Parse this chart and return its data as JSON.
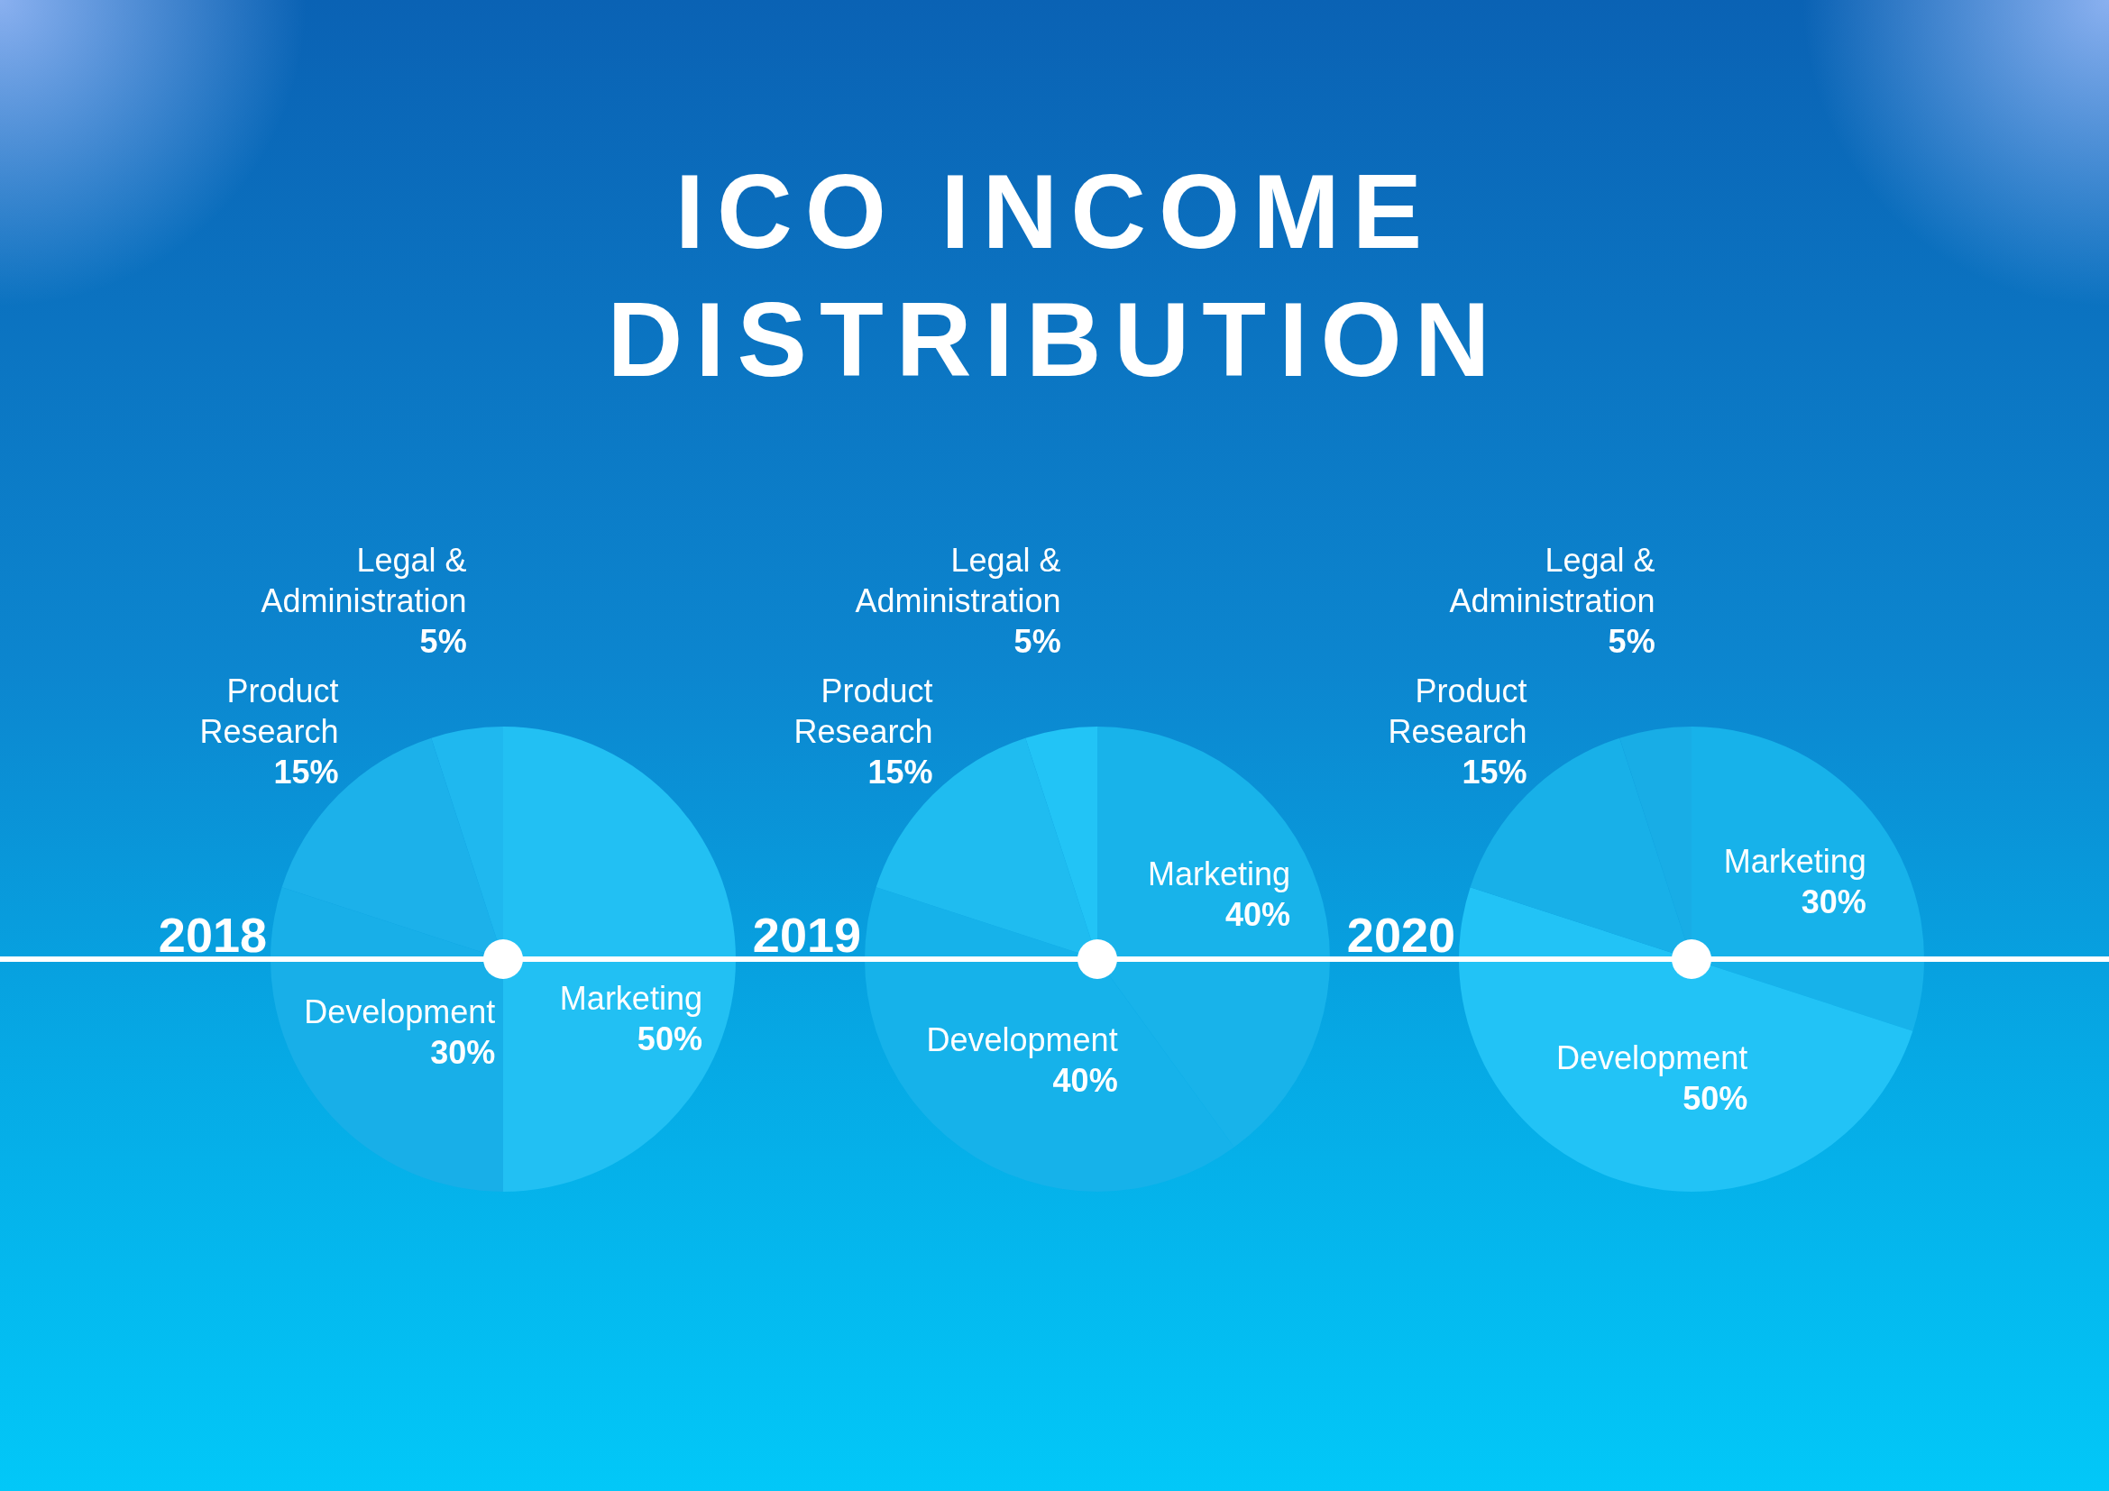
{
  "chart_data": [
    {
      "type": "other",
      "title": "ICO INCOME DISTRIBUTION"
    },
    {
      "type": "pie",
      "title": "2018",
      "categories": [
        "Marketing",
        "Development",
        "Product Research",
        "Legal & Administration"
      ],
      "values": [
        50,
        30,
        15,
        5
      ],
      "colors": [
        "#22c0f3",
        "#18afe8",
        "#1cb1ea",
        "#1fb8ef"
      ],
      "value_labels": [
        "50%",
        "30%",
        "15%",
        "5%"
      ]
    },
    {
      "type": "pie",
      "title": "2019",
      "categories": [
        "Marketing",
        "Development",
        "Product Research",
        "Legal & Administration"
      ],
      "values": [
        40,
        40,
        15,
        5
      ],
      "colors": [
        "#18b3ea",
        "#16b2ea",
        "#1fbcf0",
        "#22c4f6"
      ],
      "value_labels": [
        "40%",
        "40%",
        "15%",
        "5%"
      ]
    },
    {
      "type": "pie",
      "title": "2020",
      "categories": [
        "Marketing",
        "Development",
        "Product Research",
        "Legal & Administration"
      ],
      "values": [
        30,
        50,
        15,
        5
      ],
      "colors": [
        "#17b2ea",
        "#22c3f6",
        "#18b0e8",
        "#18ade6"
      ],
      "value_labels": [
        "30%",
        "50%",
        "15%",
        "5%"
      ]
    }
  ]
}
